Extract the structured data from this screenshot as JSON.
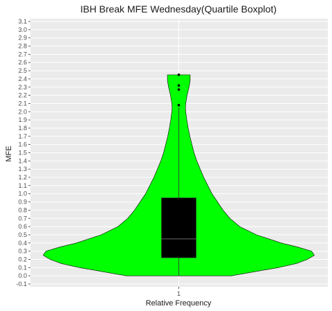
{
  "chart_data": {
    "type": "violin",
    "title": "IBH Break MFE Wednesday(Quartile Boxplot)",
    "xlabel": "Relative Frequency",
    "ylabel": "MFE",
    "x_categories": [
      "1"
    ],
    "ylim": [
      -0.1,
      3.1
    ],
    "y_ticks": [
      -0.1,
      0.0,
      0.1,
      0.2,
      0.3,
      0.4,
      0.5,
      0.6,
      0.7,
      0.8,
      0.9,
      1.0,
      1.1,
      1.2,
      1.3,
      1.4,
      1.5,
      1.6,
      1.7,
      1.8,
      1.9,
      2.0,
      2.1,
      2.2,
      2.3,
      2.4,
      2.5,
      2.6,
      2.7,
      2.8,
      2.9,
      3.0,
      3.1
    ],
    "y_tick_labels": [
      "-0.1",
      "0.0",
      "0.1",
      "0.2",
      "0.3",
      "0.4",
      "0.5",
      "0.6",
      "0.7",
      "0.8",
      "0.9",
      "1.0",
      "1.1",
      "1.2",
      "1.3",
      "1.4",
      "1.5",
      "1.6",
      "1.7",
      "1.8",
      "1.9",
      "2.0",
      "2.1",
      "2.2",
      "2.3",
      "2.4",
      "2.5",
      "2.6",
      "2.7",
      "2.8",
      "2.9",
      "3.0",
      "3.1"
    ],
    "violin_density": [
      {
        "y": 0.0,
        "w": 0.38
      },
      {
        "y": 0.05,
        "w": 0.55
      },
      {
        "y": 0.1,
        "w": 0.72
      },
      {
        "y": 0.15,
        "w": 0.85
      },
      {
        "y": 0.2,
        "w": 0.93
      },
      {
        "y": 0.25,
        "w": 0.98
      },
      {
        "y": 0.3,
        "w": 0.96
      },
      {
        "y": 0.35,
        "w": 0.86
      },
      {
        "y": 0.4,
        "w": 0.74
      },
      {
        "y": 0.5,
        "w": 0.56
      },
      {
        "y": 0.6,
        "w": 0.44
      },
      {
        "y": 0.7,
        "w": 0.37
      },
      {
        "y": 0.8,
        "w": 0.32
      },
      {
        "y": 0.9,
        "w": 0.28
      },
      {
        "y": 1.0,
        "w": 0.24
      },
      {
        "y": 1.1,
        "w": 0.21
      },
      {
        "y": 1.2,
        "w": 0.18
      },
      {
        "y": 1.3,
        "w": 0.155
      },
      {
        "y": 1.4,
        "w": 0.13
      },
      {
        "y": 1.5,
        "w": 0.11
      },
      {
        "y": 1.6,
        "w": 0.095
      },
      {
        "y": 1.7,
        "w": 0.08
      },
      {
        "y": 1.8,
        "w": 0.068
      },
      {
        "y": 1.9,
        "w": 0.058
      },
      {
        "y": 2.0,
        "w": 0.05
      },
      {
        "y": 2.05,
        "w": 0.048
      },
      {
        "y": 2.1,
        "w": 0.05
      },
      {
        "y": 2.2,
        "w": 0.06
      },
      {
        "y": 2.3,
        "w": 0.074
      },
      {
        "y": 2.38,
        "w": 0.082
      },
      {
        "y": 2.45,
        "w": 0.082
      }
    ],
    "box": {
      "q1": 0.22,
      "median": 0.45,
      "q3": 0.95,
      "whisker_low": 0.0,
      "whisker_high": 2.05
    },
    "outliers": [
      2.08,
      2.27,
      2.32,
      2.45
    ],
    "colors": {
      "violin_fill": "#00ff00",
      "violin_stroke": "#000000",
      "box_fill": "#000000",
      "median": "#555555",
      "panel_bg": "#ebebeb",
      "grid": "#ffffff"
    },
    "grid": true,
    "legend": "none"
  }
}
